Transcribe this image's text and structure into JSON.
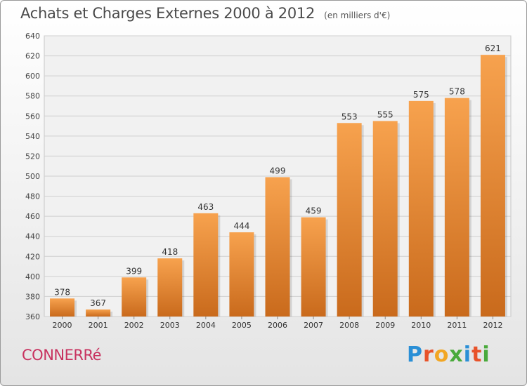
{
  "chart_data": {
    "type": "bar",
    "title": "Achats et Charges Externes 2000 à 2012",
    "subtitle": "(en milliers d'€)",
    "xlabel": "",
    "ylabel": "",
    "categories": [
      "2000",
      "2001",
      "2002",
      "2003",
      "2004",
      "2005",
      "2006",
      "2007",
      "2008",
      "2009",
      "2010",
      "2011",
      "2012"
    ],
    "values": [
      378,
      367,
      399,
      418,
      463,
      444,
      499,
      459,
      553,
      555,
      575,
      578,
      621
    ],
    "data_labels": [
      "378",
      "367",
      "399",
      "418",
      "463",
      "444",
      "499",
      "459",
      "553",
      "555",
      "575",
      "578",
      "621"
    ],
    "ylim": [
      360,
      640
    ],
    "yticks": [
      360,
      380,
      400,
      420,
      440,
      460,
      480,
      500,
      520,
      540,
      560,
      580,
      600,
      620,
      640
    ],
    "grid": true,
    "bar_color_top": "#f7a24e",
    "bar_color_bottom": "#c96a1c"
  },
  "footer": {
    "commune": "CONNERRé",
    "brand_letters": [
      "P",
      "r",
      "o",
      "x",
      "i",
      "t",
      "i"
    ],
    "brand_colors": [
      "#2a8fd6",
      "#e8532a",
      "#f2a623",
      "#4aaa3c",
      "#2a8fd6",
      "#e8532a",
      "#4aaa3c"
    ]
  }
}
